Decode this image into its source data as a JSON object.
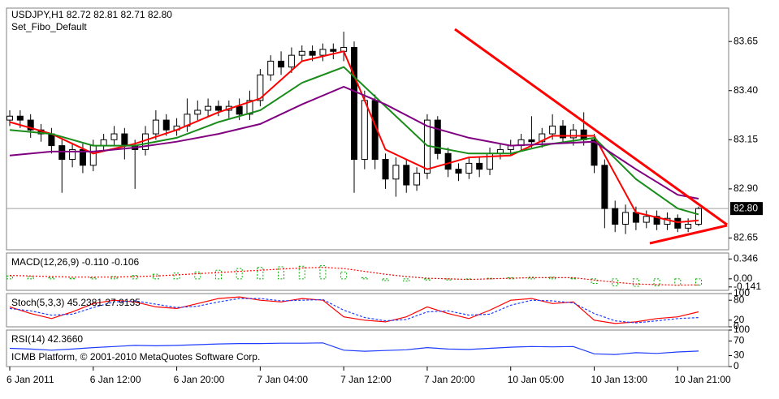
{
  "chart_data": [
    {
      "type": "candlestick",
      "title": "USDJPY,H1  82.72 82.81 82.71 82.80",
      "subtitle": "Set_Fibo_Default",
      "categories": [
        "6 Jan 2011",
        null,
        null,
        null,
        null,
        null,
        null,
        null,
        "6 Jan 12:00",
        null,
        null,
        null,
        null,
        null,
        null,
        null,
        "6 Jan 20:00",
        null,
        null,
        null,
        null,
        null,
        null,
        null,
        "7 Jan 04:00",
        null,
        null,
        null,
        null,
        null,
        null,
        null,
        "7 Jan 12:00",
        null,
        null,
        null,
        null,
        null,
        null,
        null,
        "7 Jan 20:00",
        null,
        null,
        null,
        null,
        null,
        null,
        null,
        "10 Jan 05:00",
        null,
        null,
        null,
        null,
        null,
        null,
        null,
        "10 Jan 13:00",
        null,
        null,
        null,
        null,
        null,
        null,
        null,
        "10 Jan 21:00",
        null,
        null
      ],
      "open": [
        83.25,
        83.27,
        83.25,
        83.2,
        83.18,
        83.12,
        83.05,
        83.1,
        83.02,
        83.12,
        83.15,
        83.18,
        83.12,
        83.1,
        83.18,
        83.25,
        83.2,
        83.22,
        83.28,
        83.3,
        83.32,
        83.3,
        83.32,
        83.28,
        83.35,
        83.48,
        83.55,
        83.52,
        83.58,
        83.6,
        83.58,
        83.61,
        83.6,
        83.62,
        83.05,
        83.35,
        83.05,
        82.95,
        83.02,
        82.92,
        82.98,
        83.25,
        83.08,
        83.0,
        82.98,
        83.03,
        83.0,
        83.08,
        83.1,
        83.12,
        83.15,
        83.14,
        83.18,
        83.22,
        83.16,
        83.2,
        83.15,
        83.02,
        82.8,
        82.72,
        82.78,
        82.73,
        82.76,
        82.72,
        82.75,
        82.7,
        82.72
      ],
      "high": [
        83.3,
        83.3,
        83.28,
        83.23,
        83.21,
        83.15,
        83.13,
        83.13,
        83.15,
        83.18,
        83.22,
        83.21,
        83.15,
        83.22,
        83.3,
        83.28,
        83.26,
        83.36,
        83.35,
        83.36,
        83.35,
        83.35,
        83.36,
        83.4,
        83.51,
        83.58,
        83.6,
        83.62,
        83.63,
        83.63,
        83.64,
        83.64,
        83.7,
        83.65,
        83.4,
        83.38,
        83.08,
        83.06,
        83.05,
        83.01,
        83.28,
        83.27,
        83.11,
        83.03,
        83.06,
        83.06,
        83.11,
        83.13,
        83.15,
        83.18,
        83.27,
        83.21,
        83.28,
        83.25,
        83.23,
        83.29,
        83.18,
        83.05,
        82.84,
        82.82,
        82.81,
        82.79,
        82.79,
        82.78,
        82.77,
        82.75,
        82.81
      ],
      "low": [
        83.22,
        83.21,
        83.16,
        83.14,
        83.08,
        82.88,
        83.01,
        82.98,
        82.99,
        83.09,
        83.12,
        83.05,
        82.9,
        83.07,
        83.15,
        83.17,
        83.17,
        83.19,
        83.25,
        83.27,
        83.27,
        83.26,
        83.25,
        83.25,
        83.32,
        83.45,
        83.48,
        83.49,
        83.55,
        83.55,
        83.55,
        83.56,
        83.55,
        82.88,
        83.0,
        83.0,
        82.9,
        82.86,
        82.88,
        82.89,
        82.95,
        83.05,
        82.96,
        82.94,
        82.95,
        82.96,
        82.97,
        83.05,
        83.07,
        83.09,
        83.11,
        83.11,
        83.15,
        83.13,
        83.12,
        83.12,
        82.98,
        82.7,
        82.68,
        82.67,
        82.69,
        82.7,
        82.69,
        82.69,
        82.68,
        82.68,
        82.71
      ],
      "close": [
        83.27,
        83.25,
        83.2,
        83.18,
        83.12,
        83.05,
        83.1,
        83.02,
        83.12,
        83.15,
        83.18,
        83.12,
        83.1,
        83.18,
        83.25,
        83.2,
        83.22,
        83.28,
        83.3,
        83.32,
        83.3,
        83.32,
        83.28,
        83.35,
        83.48,
        83.55,
        83.52,
        83.58,
        83.6,
        83.58,
        83.61,
        83.6,
        83.62,
        83.05,
        83.35,
        83.05,
        82.95,
        83.02,
        82.92,
        82.98,
        83.25,
        83.08,
        83.0,
        82.98,
        83.03,
        83.0,
        83.08,
        83.1,
        83.12,
        83.15,
        83.14,
        83.18,
        83.22,
        83.16,
        83.2,
        83.15,
        83.02,
        82.8,
        82.72,
        82.78,
        82.73,
        82.76,
        82.72,
        82.75,
        82.7,
        82.72,
        82.8
      ],
      "up_color": "#ffffff",
      "down_color": "#000000",
      "series": [
        {
          "color": "#ff0000",
          "x": [
            0,
            4,
            8,
            12,
            16,
            20,
            24,
            28,
            32,
            36,
            40,
            44,
            48,
            52,
            56,
            60,
            64,
            66
          ],
          "values": [
            83.24,
            83.18,
            83.08,
            83.13,
            83.2,
            83.29,
            83.36,
            83.55,
            83.6,
            83.1,
            83.0,
            83.06,
            83.07,
            83.17,
            83.17,
            82.78,
            82.73,
            82.74
          ]
        },
        {
          "color": "#1a8c1a",
          "x": [
            0,
            4,
            8,
            12,
            16,
            20,
            24,
            28,
            32,
            36,
            40,
            44,
            48,
            52,
            56,
            60,
            64,
            66
          ],
          "values": [
            83.2,
            83.18,
            83.12,
            83.12,
            83.16,
            83.24,
            83.3,
            83.44,
            83.52,
            83.32,
            83.12,
            83.08,
            83.08,
            83.13,
            83.16,
            82.95,
            82.8,
            82.77
          ]
        },
        {
          "color": "#800080",
          "x": [
            0,
            4,
            8,
            12,
            16,
            20,
            24,
            28,
            32,
            36,
            40,
            44,
            48,
            52,
            56,
            60,
            64,
            66
          ],
          "values": [
            83.07,
            83.09,
            83.09,
            83.11,
            83.14,
            83.18,
            83.23,
            83.33,
            83.42,
            83.33,
            83.22,
            83.16,
            83.12,
            83.13,
            83.14,
            83.0,
            82.87,
            82.85
          ]
        }
      ],
      "ylim": [
        82.59,
        83.82
      ],
      "yticks": [
        83.65,
        {
          "value": 83.4,
          "label": "83.40"
        },
        83.15,
        {
          "value": 82.9,
          "label": "82.90"
        },
        82.65
      ],
      "last_price": {
        "value": 82.8,
        "label": "82.80"
      }
    },
    {
      "type": "macd",
      "title": "MACD(12,26,9) -0.110 -0.106",
      "x": [
        0,
        2,
        4,
        6,
        8,
        10,
        12,
        14,
        16,
        18,
        20,
        22,
        24,
        26,
        28,
        30,
        32,
        34,
        36,
        38,
        40,
        42,
        44,
        46,
        48,
        50,
        52,
        54,
        56,
        58,
        60,
        62,
        64,
        66
      ],
      "series": [
        {
          "kind": "bar",
          "color": "#00b000",
          "values": [
            0.05,
            0.04,
            0.02,
            0.01,
            0.02,
            0.04,
            0.06,
            0.08,
            0.1,
            0.12,
            0.15,
            0.18,
            0.2,
            0.21,
            0.22,
            0.23,
            0.12,
            0.02,
            -0.03,
            -0.04,
            -0.02,
            -0.02,
            0.0,
            0.01,
            0.02,
            0.03,
            0.03,
            0.01,
            -0.08,
            -0.12,
            -0.13,
            -0.12,
            -0.11,
            -0.11
          ]
        },
        {
          "kind": "line",
          "color": "#ff0000",
          "dash": "2,2",
          "values": [
            0.06,
            0.05,
            0.04,
            0.03,
            0.03,
            0.03,
            0.04,
            0.05,
            0.07,
            0.09,
            0.11,
            0.13,
            0.15,
            0.17,
            0.19,
            0.2,
            0.18,
            0.13,
            0.08,
            0.04,
            0.01,
            0.0,
            -0.01,
            0.0,
            0.01,
            0.02,
            0.02,
            0.02,
            -0.02,
            -0.06,
            -0.09,
            -0.1,
            -0.11,
            -0.106
          ]
        }
      ],
      "ylim": [
        -0.2,
        0.45
      ],
      "yticks": [
        0.346,
        {
          "value": 0,
          "label": "0.00"
        },
        -0.141
      ]
    },
    {
      "type": "line",
      "title": "Stoch(5,3,3) 45.2381 27.9135",
      "x": [
        0,
        2,
        4,
        6,
        8,
        10,
        12,
        14,
        16,
        18,
        20,
        22,
        24,
        26,
        28,
        30,
        32,
        34,
        36,
        38,
        40,
        42,
        44,
        46,
        48,
        50,
        52,
        54,
        56,
        58,
        60,
        62,
        64,
        66
      ],
      "series": [
        {
          "kind": "line",
          "color": "#ff0000",
          "values": [
            60,
            40,
            25,
            45,
            70,
            80,
            75,
            60,
            55,
            70,
            85,
            90,
            80,
            75,
            85,
            80,
            30,
            20,
            15,
            30,
            60,
            40,
            25,
            50,
            80,
            85,
            70,
            75,
            20,
            10,
            15,
            25,
            30,
            45.2381
          ]
        },
        {
          "kind": "line",
          "color": "#2040ff",
          "dash": "3,2",
          "values": [
            55,
            48,
            35,
            38,
            58,
            75,
            78,
            68,
            58,
            62,
            75,
            85,
            85,
            78,
            80,
            82,
            50,
            28,
            18,
            22,
            45,
            48,
            35,
            38,
            65,
            80,
            78,
            72,
            40,
            18,
            12,
            18,
            25,
            27.9135
          ]
        }
      ],
      "ylim": [
        0,
        100
      ],
      "yticks": [
        100,
        80,
        20,
        0
      ]
    },
    {
      "type": "line",
      "title": "RSI(14) 42.3660",
      "annotation": "ICMB Platform, © 2001-2010 MetaQuotes Software Corp.",
      "x": [
        0,
        2,
        4,
        6,
        8,
        10,
        12,
        14,
        16,
        18,
        20,
        22,
        24,
        26,
        28,
        30,
        32,
        34,
        36,
        38,
        40,
        42,
        44,
        46,
        48,
        50,
        52,
        54,
        56,
        58,
        60,
        62,
        64,
        66
      ],
      "series": [
        {
          "kind": "line",
          "color": "#1e3cff",
          "values": [
            50,
            48,
            45,
            48,
            52,
            55,
            58,
            57,
            58,
            60,
            62,
            63,
            63,
            64,
            64,
            65,
            45,
            42,
            44,
            46,
            52,
            48,
            47,
            50,
            53,
            55,
            54,
            55,
            35,
            33,
            38,
            36,
            40,
            42.366
          ]
        }
      ],
      "ylim": [
        0,
        100
      ],
      "yticks": [
        100,
        70,
        30,
        0
      ]
    }
  ]
}
